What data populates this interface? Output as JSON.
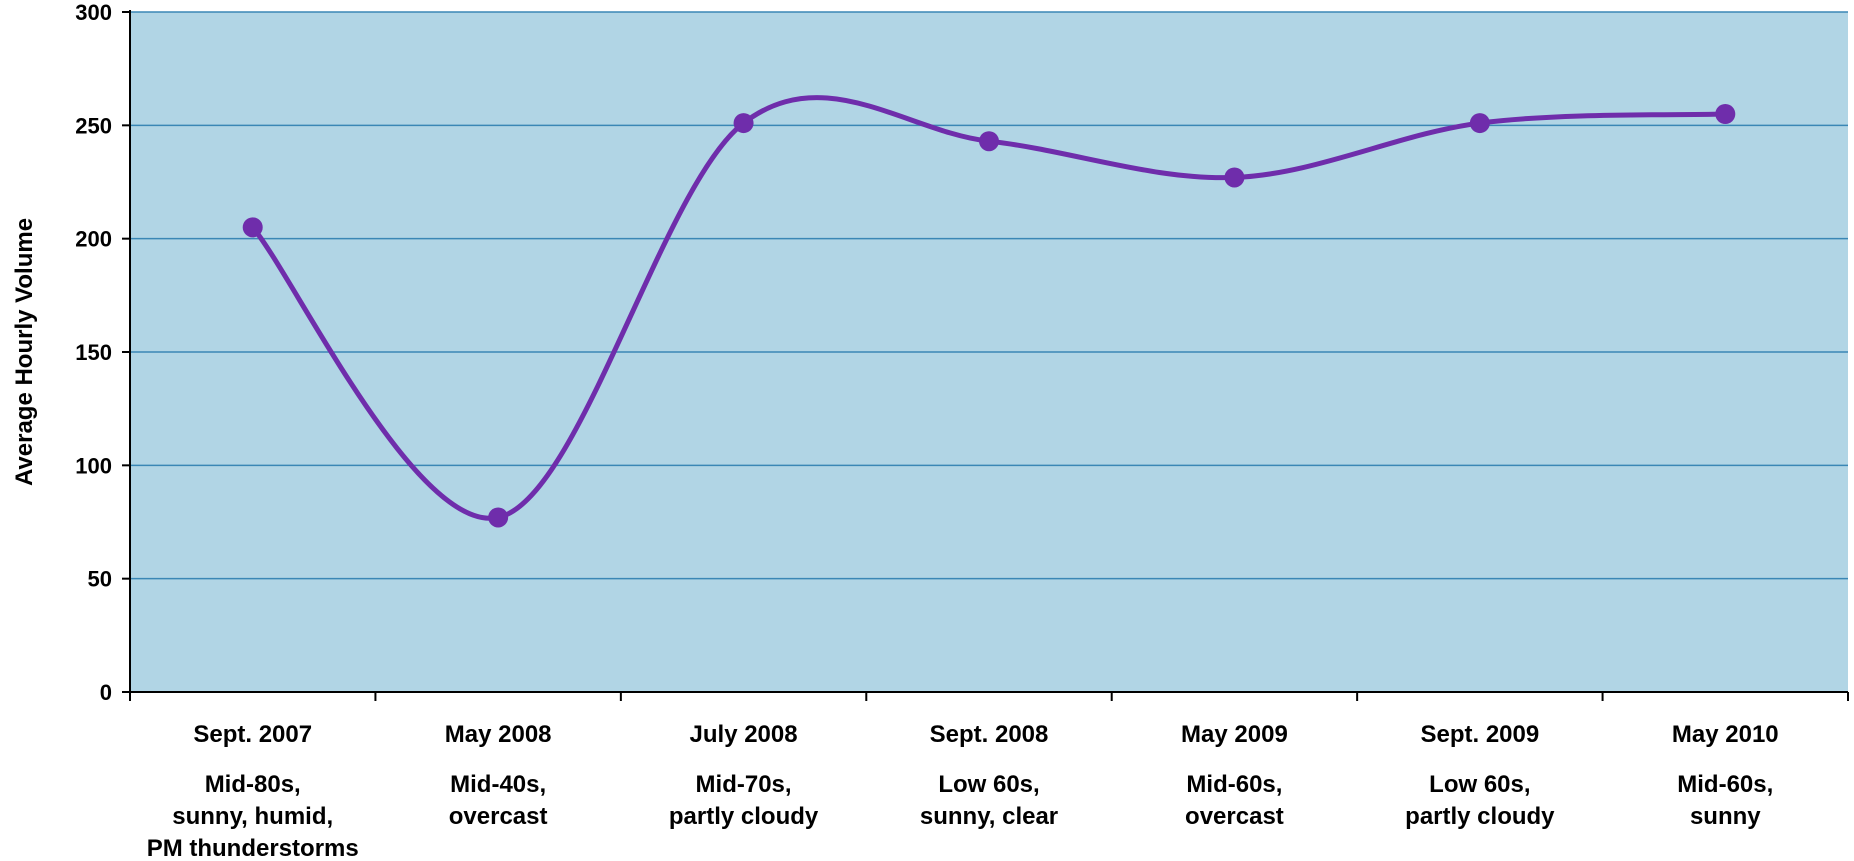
{
  "chart_data": {
    "type": "line",
    "ylabel": "Average Hourly Volume",
    "ylim": [
      0,
      300
    ],
    "yticks": [
      0,
      50,
      100,
      150,
      200,
      250,
      300
    ],
    "grid": true,
    "smooth": true,
    "categories": [
      {
        "period": "Sept. 2007",
        "weather": [
          "Mid-80s,",
          "sunny, humid,",
          "PM thunderstorms"
        ]
      },
      {
        "period": "May 2008",
        "weather": [
          "Mid-40s,",
          "overcast"
        ]
      },
      {
        "period": "July 2008",
        "weather": [
          "Mid-70s,",
          "partly cloudy"
        ]
      },
      {
        "period": "Sept. 2008",
        "weather": [
          "Low 60s,",
          "sunny, clear"
        ]
      },
      {
        "period": "May 2009",
        "weather": [
          "Mid-60s,",
          "overcast"
        ]
      },
      {
        "period": "Sept. 2009",
        "weather": [
          "Low 60s,",
          "partly cloudy"
        ]
      },
      {
        "period": "May 2010",
        "weather": [
          "Mid-60s,",
          "sunny"
        ]
      }
    ],
    "series": [
      {
        "values": [
          205,
          77,
          251,
          243,
          227,
          251,
          255
        ]
      }
    ],
    "colors": {
      "plot_background": "#b1d5e5",
      "gridline": "#3a87b5",
      "line": "#6f2dab",
      "axis": "#000000"
    }
  }
}
